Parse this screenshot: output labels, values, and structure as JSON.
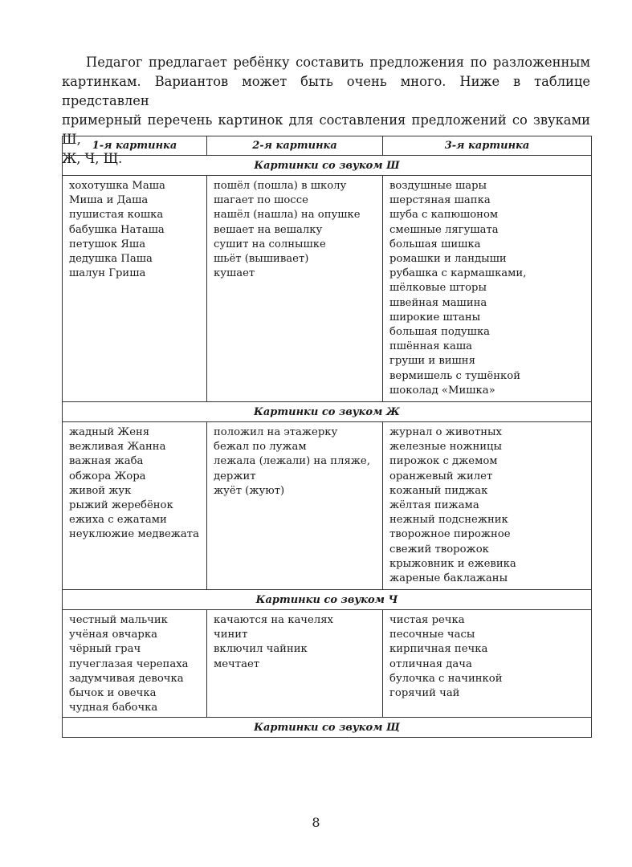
{
  "intro": [
    "Педагог предлагает ребёнку составить предложения по разложенным",
    "картинкам. Вариантов может быть очень много. Ниже в таблице представлен",
    "примерный перечень картинок для составления предложений со звуками Ш,",
    "Ж, Ч, Щ."
  ],
  "table": {
    "headers": [
      "1-я картинка",
      "2-я картинка",
      "3-я картинка"
    ],
    "sections": [
      {
        "title": "Картинки со звуком Ш",
        "columns": [
          [
            "хохотушка Маша",
            "Миша и Даша",
            "пушистая кошка",
            "бабушка Наташа",
            "петушок Яша",
            "дедушка Паша",
            "шалун Гриша"
          ],
          [
            "пошёл (пошла) в школу",
            "шагает по шоссе",
            "нашёл (нашла) на опушке",
            "вешает на вешалку",
            "сушит на солнышке",
            "шьёт (вышивает)",
            "кушает"
          ],
          [
            "воздушные шары",
            "шерстяная шапка",
            "шуба с капюшоном",
            "смешные лягушата",
            "большая шишка",
            "ромашки и ландыши",
            "рубашка с кармашками,",
            "шёлковые шторы",
            "швейная машина",
            "широкие штаны",
            "большая подушка",
            "пшённая каша",
            "груши и вишня",
            "вермишель с тушёнкой",
            "шоколад «Мишка»"
          ]
        ]
      },
      {
        "title": "Картинки со звуком Ж",
        "columns": [
          [
            "жадный Женя",
            "вежливая Жанна",
            "важная жаба",
            "обжора Жора",
            "живой жук",
            "рыжий жеребёнок",
            "ежиха с ежатами",
            "неуклюжие медвежата"
          ],
          [
            "положил на этажерку",
            "бежал по лужам",
            "лежала (лежали) на пляже,",
            "держит",
            "жуёт (жуют)"
          ],
          [
            "журнал о животных",
            "железные ножницы",
            "пирожок с джемом",
            "оранжевый жилет",
            "кожаный пиджак",
            "жёлтая пижама",
            "нежный подснежник",
            "творожное пирожное",
            "свежий творожок",
            "крыжовник и ежевика",
            "жареные баклажаны"
          ]
        ]
      },
      {
        "title": "Картинки со звуком Ч",
        "columns": [
          [
            "честный мальчик",
            "учёная овчарка",
            "чёрный грач",
            "пучеглазая черепаха",
            "задумчивая девочка",
            "бычок и овечка",
            "чудная бабочка"
          ],
          [
            "качаются на качелях",
            "чинит",
            "включил чайник",
            "мечтает"
          ],
          [
            "чистая речка",
            "песочные часы",
            "кирпичная печка",
            "отличная дача",
            "булочка с начинкой",
            "горячий чай"
          ]
        ]
      },
      {
        "title": "Картинки со звуком Щ",
        "columns": []
      }
    ]
  },
  "page_number": "8"
}
